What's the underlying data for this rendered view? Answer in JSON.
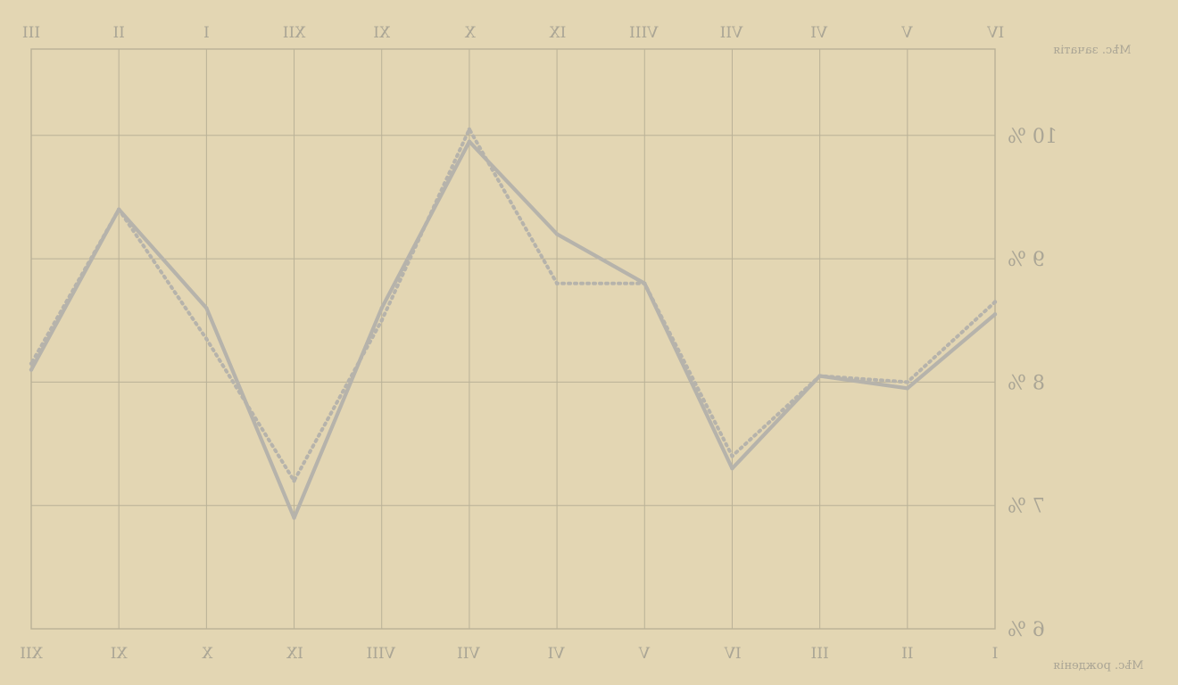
{
  "colors": {
    "paper": "#e3d6b3",
    "grid": "#b9b197",
    "line": "#b6b3ab",
    "text": "#aaa595"
  },
  "header_label": "Мѣс. зачатія",
  "footer_label": "Мѣс. рожденія",
  "chart_data": {
    "type": "line",
    "orientation": "mirrored (image is reversed left-to-right)",
    "top_axis_ticks": [
      "IV",
      "V",
      "VI",
      "VII",
      "VIII",
      "IX",
      "X",
      "XI",
      "XII",
      "I",
      "II",
      "III"
    ],
    "bottom_axis_ticks": [
      "I",
      "II",
      "III",
      "IV",
      "V",
      "VI",
      "VII",
      "VIII",
      "IX",
      "X",
      "XI",
      "XII"
    ],
    "y_tick_labels": [
      "6 %",
      "7 %",
      "8 %",
      "9 %",
      "10 %"
    ],
    "ylim": [
      6,
      10.7
    ],
    "grid": true,
    "series": [
      {
        "style": "solid",
        "values": [
          8.55,
          7.95,
          8.05,
          7.3,
          8.8,
          9.2,
          9.95,
          8.6,
          6.9,
          8.6,
          9.4,
          8.1
        ]
      },
      {
        "style": "dotted",
        "values": [
          8.65,
          8.0,
          8.05,
          7.4,
          8.8,
          8.8,
          10.05,
          8.5,
          7.2,
          8.35,
          9.4,
          8.15
        ]
      }
    ]
  }
}
